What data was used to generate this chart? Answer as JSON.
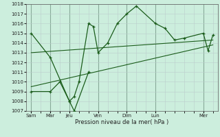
{
  "xlabel": "Pression niveau de la mer( hPa )",
  "ylim": [
    1007,
    1018
  ],
  "yticks": [
    1007,
    1008,
    1009,
    1010,
    1011,
    1012,
    1013,
    1014,
    1015,
    1016,
    1017,
    1018
  ],
  "bg_color": "#cceedd",
  "grid_minor_color": "#bbcccc",
  "grid_major_color": "#88aa99",
  "line_color": "#1a5c1a",
  "major_xtick_labels": [
    "Sam",
    "Mar",
    "Jeu",
    "Ven",
    "Dim",
    "Lun",
    "Mer"
  ],
  "major_xtick_pos": [
    0,
    2,
    4,
    7,
    10,
    13,
    18
  ],
  "xlim": [
    -0.5,
    19.5
  ],
  "series1_x": [
    0,
    2,
    4,
    4.5,
    5,
    6,
    6.5,
    7,
    8,
    9,
    10,
    11,
    13,
    14,
    15,
    16,
    18,
    18.5,
    19
  ],
  "series1_y": [
    1015,
    1012.5,
    1008,
    1008.5,
    1010,
    1016,
    1015.7,
    1013,
    1014,
    1016,
    1017,
    1017.8,
    1016,
    1015.5,
    1014.3,
    1014.5,
    1015,
    1013.2,
    1014.8
  ],
  "series2_x": [
    0,
    2,
    3,
    4,
    4.5,
    6
  ],
  "series2_y": [
    1009,
    1009,
    1010,
    1008,
    1007,
    1011
  ],
  "trend1_x": [
    0,
    19
  ],
  "trend1_y": [
    1013.0,
    1014.3
  ],
  "trend2_x": [
    0,
    19
  ],
  "trend2_y": [
    1009.5,
    1013.8
  ]
}
